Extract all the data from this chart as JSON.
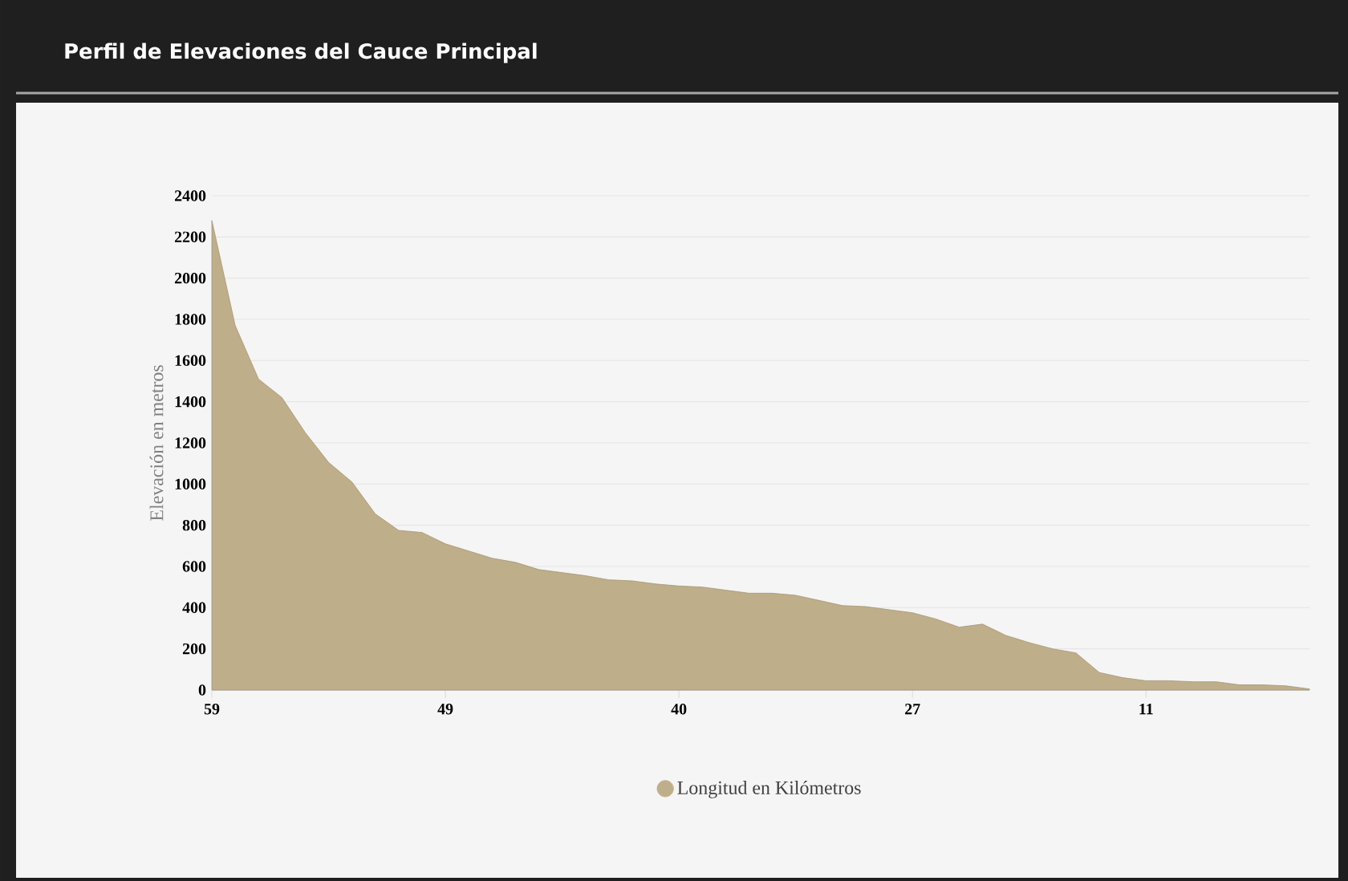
{
  "chart_data": {
    "type": "area",
    "title": "Perfil de Elevaciones del Cauce Principal",
    "ylabel": "Elevación en metros",
    "categories": [
      "59",
      null,
      null,
      null,
      null,
      null,
      null,
      null,
      null,
      null,
      "49",
      null,
      null,
      null,
      null,
      null,
      null,
      null,
      null,
      null,
      "40",
      null,
      null,
      null,
      null,
      null,
      null,
      null,
      null,
      null,
      "27",
      null,
      null,
      null,
      null,
      null,
      null,
      null,
      null,
      null,
      "11",
      null,
      null,
      null,
      null,
      null,
      null,
      null
    ],
    "series": [
      {
        "name": "Longitud en Kilómetros",
        "color": "#bfae8a",
        "values": [
          2280,
          1770,
          1510,
          1420,
          1250,
          1105,
          1010,
          855,
          775,
          765,
          710,
          675,
          640,
          620,
          585,
          570,
          555,
          535,
          530,
          515,
          505,
          500,
          485,
          470,
          470,
          460,
          435,
          410,
          405,
          390,
          375,
          345,
          305,
          320,
          265,
          230,
          200,
          180,
          85,
          60,
          45,
          45,
          40,
          40,
          25,
          25,
          20,
          5
        ]
      }
    ],
    "ylim": [
      0,
      2400
    ],
    "yticks": [
      0,
      200,
      400,
      600,
      800,
      1000,
      1200,
      1400,
      1600,
      1800,
      2000,
      2200,
      2400
    ],
    "grid": "y",
    "legend": "bottom",
    "marker": "none"
  }
}
